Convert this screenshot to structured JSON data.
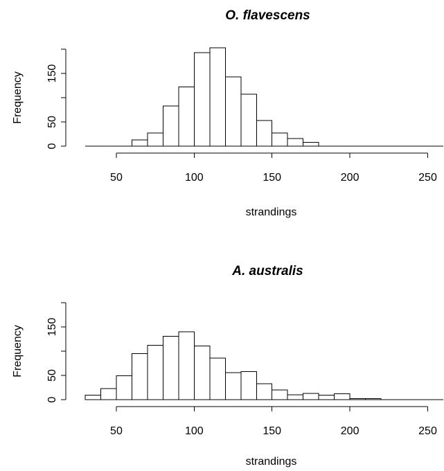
{
  "chart_data": [
    {
      "type": "bar",
      "subtype": "histogram",
      "title": "O. flavescens",
      "xlabel": "strandings",
      "ylabel": "Frequency",
      "xlim": [
        30,
        260
      ],
      "ylim": [
        0,
        210
      ],
      "bin_width": 10,
      "bins": [
        {
          "x0": 60,
          "x1": 70,
          "count": 13
        },
        {
          "x0": 70,
          "x1": 80,
          "count": 27
        },
        {
          "x0": 80,
          "x1": 90,
          "count": 83
        },
        {
          "x0": 90,
          "x1": 100,
          "count": 122
        },
        {
          "x0": 100,
          "x1": 110,
          "count": 193
        },
        {
          "x0": 110,
          "x1": 120,
          "count": 203
        },
        {
          "x0": 120,
          "x1": 130,
          "count": 143
        },
        {
          "x0": 130,
          "x1": 140,
          "count": 107
        },
        {
          "x0": 140,
          "x1": 150,
          "count": 53
        },
        {
          "x0": 150,
          "x1": 160,
          "count": 27
        },
        {
          "x0": 160,
          "x1": 170,
          "count": 16
        },
        {
          "x0": 170,
          "x1": 180,
          "count": 8
        }
      ],
      "x_baseline": [
        30,
        260
      ],
      "x_axis": {
        "ticks": [
          50,
          100,
          150,
          200,
          250
        ],
        "tick_labels": [
          "50",
          "100",
          "150",
          "200",
          "250"
        ]
      },
      "y_axis": {
        "ticks": [
          0,
          50,
          150
        ],
        "tick_labels": [
          "0",
          "50",
          "150"
        ],
        "axis_range": [
          0,
          200
        ]
      },
      "grid": false
    },
    {
      "type": "bar",
      "subtype": "histogram",
      "title": "A. australis",
      "xlabel": "strandings",
      "ylabel": "Frequency",
      "xlim": [
        30,
        260
      ],
      "ylim": [
        0,
        210
      ],
      "bin_width": 10,
      "bins": [
        {
          "x0": 30,
          "x1": 40,
          "count": 9
        },
        {
          "x0": 40,
          "x1": 50,
          "count": 23
        },
        {
          "x0": 50,
          "x1": 60,
          "count": 49
        },
        {
          "x0": 60,
          "x1": 70,
          "count": 95
        },
        {
          "x0": 70,
          "x1": 80,
          "count": 112
        },
        {
          "x0": 80,
          "x1": 90,
          "count": 131
        },
        {
          "x0": 90,
          "x1": 100,
          "count": 140
        },
        {
          "x0": 100,
          "x1": 110,
          "count": 111
        },
        {
          "x0": 110,
          "x1": 120,
          "count": 86
        },
        {
          "x0": 120,
          "x1": 130,
          "count": 56
        },
        {
          "x0": 130,
          "x1": 140,
          "count": 58
        },
        {
          "x0": 140,
          "x1": 150,
          "count": 33
        },
        {
          "x0": 150,
          "x1": 160,
          "count": 20
        },
        {
          "x0": 160,
          "x1": 170,
          "count": 10
        },
        {
          "x0": 170,
          "x1": 180,
          "count": 13
        },
        {
          "x0": 180,
          "x1": 190,
          "count": 9
        },
        {
          "x0": 190,
          "x1": 200,
          "count": 12
        },
        {
          "x0": 200,
          "x1": 210,
          "count": 2
        },
        {
          "x0": 210,
          "x1": 220,
          "count": 2
        }
      ],
      "x_baseline": [
        30,
        260
      ],
      "x_axis": {
        "ticks": [
          50,
          100,
          150,
          200,
          250
        ],
        "tick_labels": [
          "50",
          "100",
          "150",
          "200",
          "250"
        ]
      },
      "y_axis": {
        "ticks": [
          0,
          50,
          150
        ],
        "tick_labels": [
          "0",
          "50",
          "150"
        ],
        "axis_range": [
          0,
          200
        ]
      },
      "grid": false
    }
  ]
}
